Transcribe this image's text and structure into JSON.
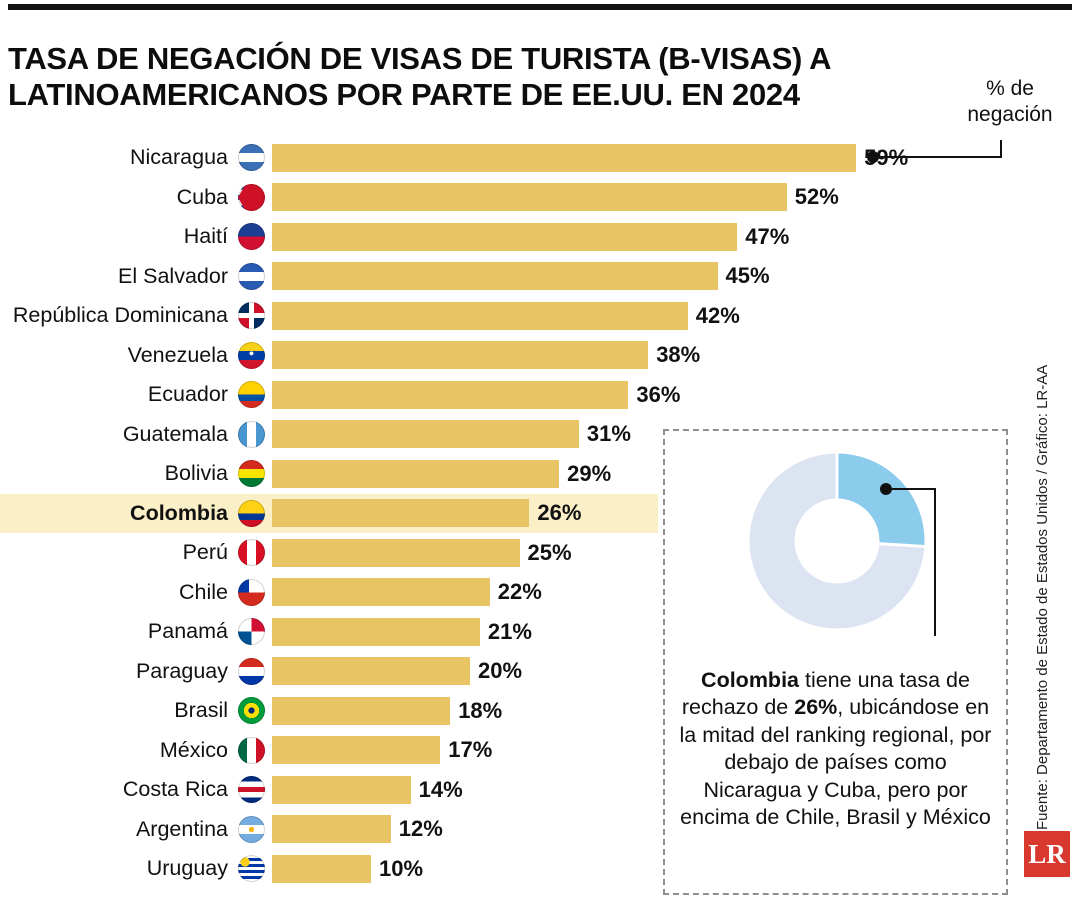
{
  "title": "TASA DE NEGACIÓN DE VISAS DE TURISTA (B-VISAS) A LATINOAMERICANOS POR PARTE DE EE.UU. EN 2024",
  "callout": {
    "label": "% de negación"
  },
  "chart_data": {
    "type": "bar",
    "orientation": "horizontal",
    "unit": "%",
    "title": "Tasa de negación de visas de turista (B-visas) a latinoamericanos por parte de EE.UU. en 2024",
    "categories": [
      "Nicaragua",
      "Cuba",
      "Haití",
      "El Salvador",
      "República Dominicana",
      "Venezuela",
      "Ecuador",
      "Guatemala",
      "Bolivia",
      "Colombia",
      "Perú",
      "Chile",
      "Panamá",
      "Paraguay",
      "Brasil",
      "México",
      "Costa Rica",
      "Argentina",
      "Uruguay"
    ],
    "values": [
      59,
      52,
      47,
      45,
      42,
      38,
      36,
      31,
      29,
      26,
      25,
      22,
      21,
      20,
      18,
      17,
      14,
      12,
      10
    ],
    "flags": [
      "ni",
      "cu",
      "ht",
      "sv",
      "do",
      "ve",
      "ec",
      "gt",
      "bo",
      "co",
      "pe",
      "cl",
      "pa",
      "py",
      "br",
      "mx",
      "cr",
      "ar",
      "uy"
    ],
    "value_labels": [
      "59%",
      "52%",
      "47%",
      "45%",
      "42%",
      "38%",
      "36%",
      "31%",
      "29%",
      "26%",
      "25%",
      "22%",
      "21%",
      "20%",
      "18%",
      "17%",
      "14%",
      "12%",
      "10%"
    ],
    "highlight_category": "Colombia",
    "xlim": [
      0,
      59
    ],
    "bar_color": "#E8C464",
    "highlight_band_color": "#FAEFC6",
    "grid": false,
    "legend": false
  },
  "donut": {
    "type": "donut",
    "value_pct": 26,
    "remainder_pct": 74,
    "active_color": "#8BCBEC",
    "remainder_color": "#DCE4F2"
  },
  "annotation": {
    "segments": [
      {
        "text": "Colombia",
        "bold": true
      },
      {
        "text": " tiene una tasa de rechazo de ",
        "bold": false
      },
      {
        "text": "26%",
        "bold": true
      },
      {
        "text": ", ubicándose en la mitad del ranking regional, por debajo de países como Nicaragua y Cuba, pero por encima de Chile, Brasil y México",
        "bold": false
      }
    ]
  },
  "source": {
    "text": "Fuente: Departamento de Estado de Estados Unidos / Gráfico: LR-AA"
  },
  "logo": {
    "text": "LR"
  }
}
